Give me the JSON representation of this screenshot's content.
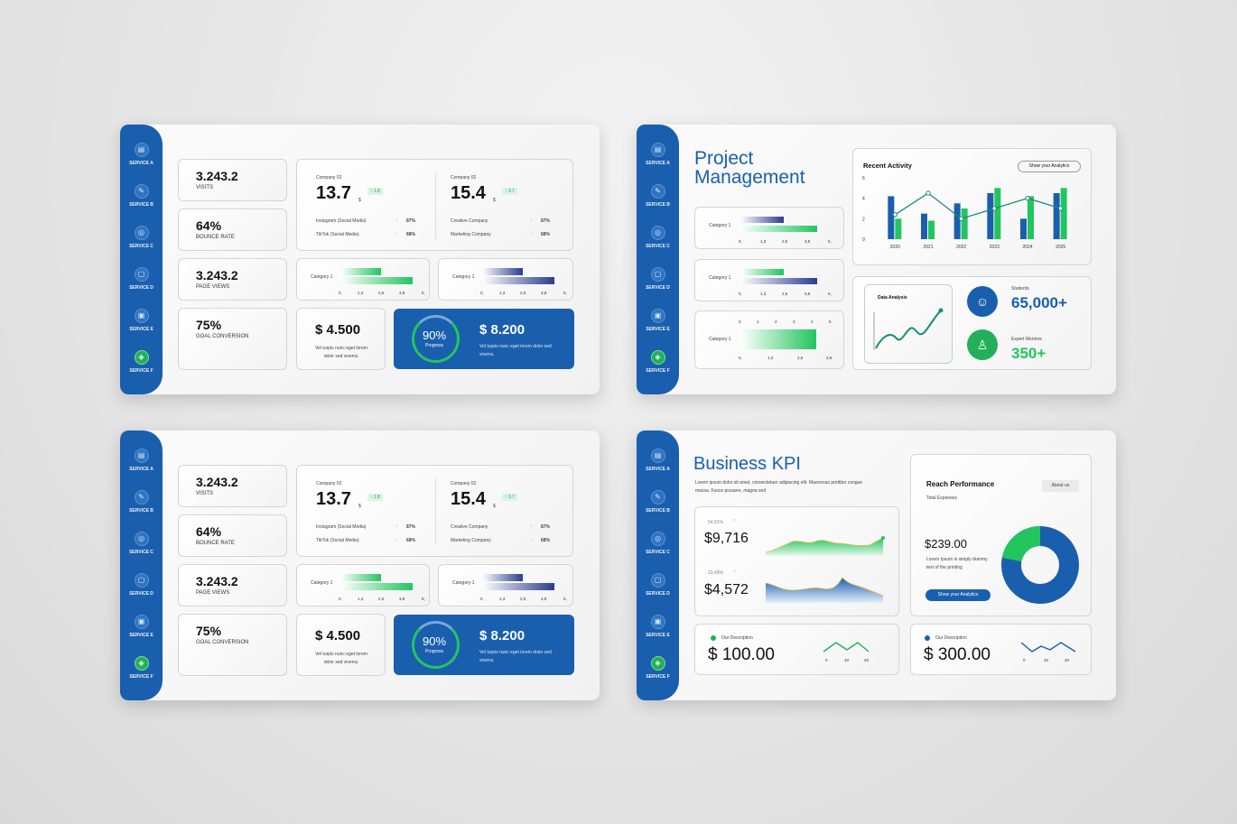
{
  "sidebar": {
    "items": [
      "SERVICE A",
      "SERVICE B",
      "SERVICE C",
      "SERVICE D",
      "SERVICE E",
      "SERVICE F"
    ],
    "active": "SERVICE F"
  },
  "stats": [
    {
      "value": "3.243.2",
      "label": "VISITS"
    },
    {
      "value": "64%",
      "label": "BOUNCE RATE"
    },
    {
      "value": "3.243.2",
      "label": "PAGE VIEWS"
    },
    {
      "value": "75%",
      "label": "GOAL CONVERSION"
    }
  ],
  "company_left": {
    "name": "Company 02",
    "value": "13.7",
    "unit": "$",
    "badge": "1.8",
    "rows": [
      {
        "label": "Instagram (Social Media)",
        "pct": "87%"
      },
      {
        "label": "TikTok (Social Media)",
        "pct": "68%"
      }
    ]
  },
  "company_right": {
    "name": "Company 02",
    "value": "15.4",
    "unit": "$",
    "badge": "3.7",
    "rows": [
      {
        "label": "Creative Company",
        "pct": "87%"
      },
      {
        "label": "Marketing Company",
        "pct": "68%"
      }
    ]
  },
  "mini_chart": {
    "category": "Category 1",
    "ticks": [
      "0,",
      "1,3",
      "2,5",
      "3,8",
      "5,"
    ]
  },
  "money_left": {
    "value": "$ 4.500",
    "desc": "Vel turpis nunc eget lorem dolor sed viverra."
  },
  "money_right": {
    "value": "$ 8.200",
    "desc": "Vel turpis nunc eget lorem dolor sed viverra.",
    "progress": "90%",
    "progress_label": "Progress",
    "progress_fraction": 0.9
  },
  "pm": {
    "title": "Project Management",
    "cat": "Category 1",
    "ticks": [
      "0,",
      "1,3",
      "2,5",
      "3,8",
      "5,"
    ],
    "ticks3": [
      "0,",
      "1,3",
      "2,5",
      "3,8"
    ],
    "top_ticks": [
      "0",
      "1",
      "2",
      "3",
      "4",
      "5"
    ],
    "recent_title": "Recent Activity",
    "recent_btn": "Show your Analytics",
    "data_analysis": "Data Analysis",
    "students_label": "Students",
    "students_value": "65,000+",
    "mentors_label": "Expert Mentors",
    "mentors_value": "350+"
  },
  "chart_data": {
    "type": "bar",
    "title": "Recent Activity",
    "categories": [
      "2020",
      "2021",
      "2022",
      "2023",
      "2024",
      "2025"
    ],
    "ylim": [
      0,
      6
    ],
    "yticks": [
      "0",
      "2",
      "4",
      "6"
    ],
    "series": [
      {
        "values": [
          4.2,
          2.5,
          3.5,
          4.5,
          2.0,
          4.5
        ]
      },
      {
        "values": [
          2.0,
          1.8,
          3.0,
          5.0,
          4.2,
          5.0
        ]
      }
    ],
    "line": [
      2.4,
      4.5,
      2.0,
      3.0,
      4.0,
      3.0
    ],
    "colors": [
      "#1a5fae",
      "#22c55e",
      "#1a8a7c"
    ]
  },
  "kpi": {
    "title": "Business KPI",
    "desc": "Lorem ipsum dolor sit amet, consectetuer adipiscing elit. Maecenas porttitor congue massa. Fusce posuere, magna sed",
    "a_pct": "54,81%",
    "a_value": "$9,716",
    "b_pct": "23,49%",
    "b_value": "$4,572",
    "reach_title": "Reach Performance",
    "reach_btn": "About us",
    "reach_sub": "Total Expenses",
    "reach_value": "$239.00",
    "reach_desc": "Lorem Ipsum is simply dummy text of the printing",
    "reach_cta": "Show your Analytics",
    "donut_fraction": 0.22,
    "d1_label": "Our Description",
    "d1_value": "$ 100.00",
    "d2_label": "Our Description",
    "d2_value": "$ 300.00",
    "spark_ticks": [
      "0",
      "10",
      "20"
    ]
  }
}
